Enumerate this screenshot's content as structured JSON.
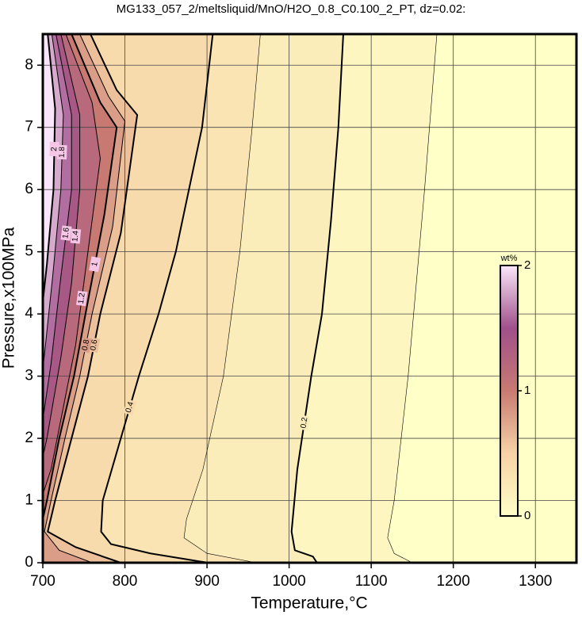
{
  "chart_data": {
    "type": "contour",
    "title": "MG133_057_2/meltsliquid/MnO/H2O_0.8_C0.100_2_PT, dz=0.02:",
    "xlabel": "Temperature,°C",
    "ylabel": "Pressure,x100MPa",
    "xlim": [
      700,
      1350
    ],
    "ylim": [
      0,
      8.5
    ],
    "xticks": [
      700,
      800,
      900,
      1000,
      1100,
      1200,
      1300
    ],
    "yticks": [
      0,
      1,
      2,
      3,
      4,
      5,
      6,
      7,
      8
    ],
    "grid": true,
    "colorbar": {
      "label": "wt%",
      "lim": [
        0,
        2
      ],
      "ticks": [
        0,
        1,
        2
      ],
      "colors": [
        "#ffffc8",
        "#f6d2a6",
        "#c87a72",
        "#a0508a",
        "#fae6fa"
      ]
    },
    "contours": [
      {
        "level": 0.1,
        "labeled": false,
        "line_width": 0.6,
        "x": [
          1180,
          1165,
          1145,
          1128,
          1120,
          1128,
          1150
        ],
        "y": [
          8.5,
          6,
          3,
          1,
          0.4,
          0.15,
          0
        ]
      },
      {
        "level": 0.2,
        "labeled": true,
        "line_width": 2,
        "x": [
          1066,
          1060,
          1051,
          1040,
          1027,
          1010,
          1003,
          1007,
          1029,
          1034
        ],
        "y": [
          8.5,
          7,
          5.5,
          4,
          3,
          1.5,
          0.5,
          0.2,
          0.1,
          0
        ]
      },
      {
        "level": 0.3,
        "labeled": false,
        "line_width": 0.6,
        "x": [
          965,
          955,
          940,
          920,
          895,
          875,
          872,
          900,
          960
        ],
        "y": [
          8.5,
          7,
          5,
          3,
          1.5,
          0.7,
          0.4,
          0.15,
          0
        ]
      },
      {
        "level": 0.4,
        "labeled": true,
        "line_width": 2,
        "x": [
          907,
          894,
          878,
          862,
          841,
          817,
          795,
          773,
          771,
          783,
          831,
          901
        ],
        "y": [
          8.5,
          7,
          6,
          5,
          4,
          3,
          2,
          1,
          0.5,
          0.3,
          0.15,
          0
        ]
      },
      {
        "level": 0.6,
        "labeled": true,
        "line_width": 2,
        "x": [
          758,
          790,
          815,
          795,
          770,
          755,
          735,
          715,
          706,
          740,
          795
        ],
        "y": [
          8.5,
          7.6,
          7.2,
          5.3,
          4,
          3,
          2,
          1,
          0.5,
          0.25,
          0
        ]
      },
      {
        "level": 0.8,
        "labeled": true,
        "line_width": 1,
        "x": [
          745,
          780,
          800,
          785,
          760,
          745,
          727,
          710,
          702,
          720,
          760
        ],
        "y": [
          8.5,
          7.5,
          7.1,
          5.4,
          4,
          3,
          2,
          1,
          0.5,
          0.2,
          0
        ]
      },
      {
        "level": 1,
        "labeled": true,
        "line_width": 2,
        "x": [
          735,
          770,
          790,
          775,
          752,
          738,
          720,
          705,
          700
        ],
        "y": [
          8.5,
          7.4,
          7,
          5.6,
          4,
          3,
          2,
          1,
          0.7
        ]
      },
      {
        "level": 1.2,
        "labeled": true,
        "line_width": 1,
        "x": [
          728,
          760,
          770,
          755,
          740,
          725,
          710,
          700
        ],
        "y": [
          8.5,
          7.4,
          6.5,
          5,
          3.5,
          2.5,
          1.5,
          1.1
        ]
      },
      {
        "level": 1.4,
        "labeled": true,
        "line_width": 1,
        "x": [
          722,
          745,
          745,
          735,
          722,
          705,
          700
        ],
        "y": [
          8.5,
          7.2,
          6,
          4.5,
          3.3,
          2,
          1.7
        ]
      },
      {
        "level": 1.6,
        "labeled": true,
        "line_width": 1,
        "x": [
          716,
          735,
          735,
          722,
          710,
          700
        ],
        "y": [
          8.5,
          7.2,
          6,
          4.6,
          3.2,
          2.3
        ]
      },
      {
        "level": 1.8,
        "labeled": true,
        "line_width": 1,
        "x": [
          711,
          725,
          722,
          712,
          700
        ],
        "y": [
          8.5,
          7.2,
          6,
          4.6,
          3.1
        ]
      },
      {
        "level": 2,
        "labeled": true,
        "line_width": 2,
        "x": [
          706,
          715,
          713,
          705,
          700
        ],
        "y": [
          8.5,
          7.3,
          6,
          4.8,
          4.2
        ]
      }
    ]
  }
}
